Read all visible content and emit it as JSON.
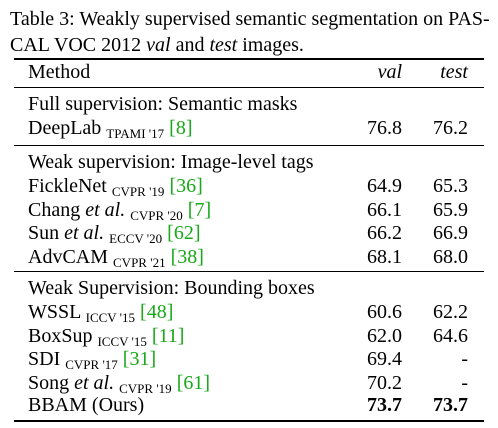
{
  "caption": {
    "prefix": "Table 3: Weakly supervised semantic segmentation on PAS-",
    "line2_a": "CAL VOC 2012 ",
    "line2_val": "val",
    "line2_mid": " and ",
    "line2_test": "test",
    "line2_end": " images."
  },
  "header": {
    "method": "Method",
    "val": "val",
    "test": "test"
  },
  "sections": [
    {
      "title": "Full supervision: Semantic masks",
      "rows": [
        {
          "name": "DeepLab",
          "name_italic": "",
          "venue": "TPAMI '17",
          "cite": "[8]",
          "val": "76.8",
          "test": "76.2"
        }
      ]
    },
    {
      "title": "Weak supervision: Image-level tags",
      "rows": [
        {
          "name": "FickleNet",
          "name_italic": "",
          "venue": "CVPR '19",
          "cite": "[36]",
          "val": "64.9",
          "test": "65.3"
        },
        {
          "name": "Chang",
          "name_italic": "et al.",
          "venue": "CVPR '20",
          "cite": "[7]",
          "val": "66.1",
          "test": "65.9"
        },
        {
          "name": "Sun",
          "name_italic": "et al.",
          "venue": "ECCV '20",
          "cite": "[62]",
          "val": "66.2",
          "test": "66.9"
        },
        {
          "name": "AdvCAM",
          "name_italic": "",
          "venue": "CVPR '21",
          "cite": "[38]",
          "val": "68.1",
          "test": "68.0"
        }
      ]
    },
    {
      "title": "Weak Supervision: Bounding boxes",
      "rows": [
        {
          "name": "WSSL",
          "name_italic": "",
          "venue": "ICCV '15",
          "cite": "[48]",
          "val": "60.6",
          "test": "62.2"
        },
        {
          "name": "BoxSup",
          "name_italic": "",
          "venue": "ICCV '15",
          "cite": "[11]",
          "val": "62.0",
          "test": "64.6"
        },
        {
          "name": "SDI",
          "name_italic": "",
          "venue": "CVPR '17",
          "cite": "[31]",
          "val": "69.4",
          "test": "-"
        },
        {
          "name": "Song",
          "name_italic": "et al.",
          "venue": "CVPR '19",
          "cite": "[61]",
          "val": "70.2",
          "test": "-"
        }
      ]
    }
  ],
  "final_row": {
    "name": "BBAM (Ours)",
    "val": "73.7",
    "test": "73.7"
  }
}
